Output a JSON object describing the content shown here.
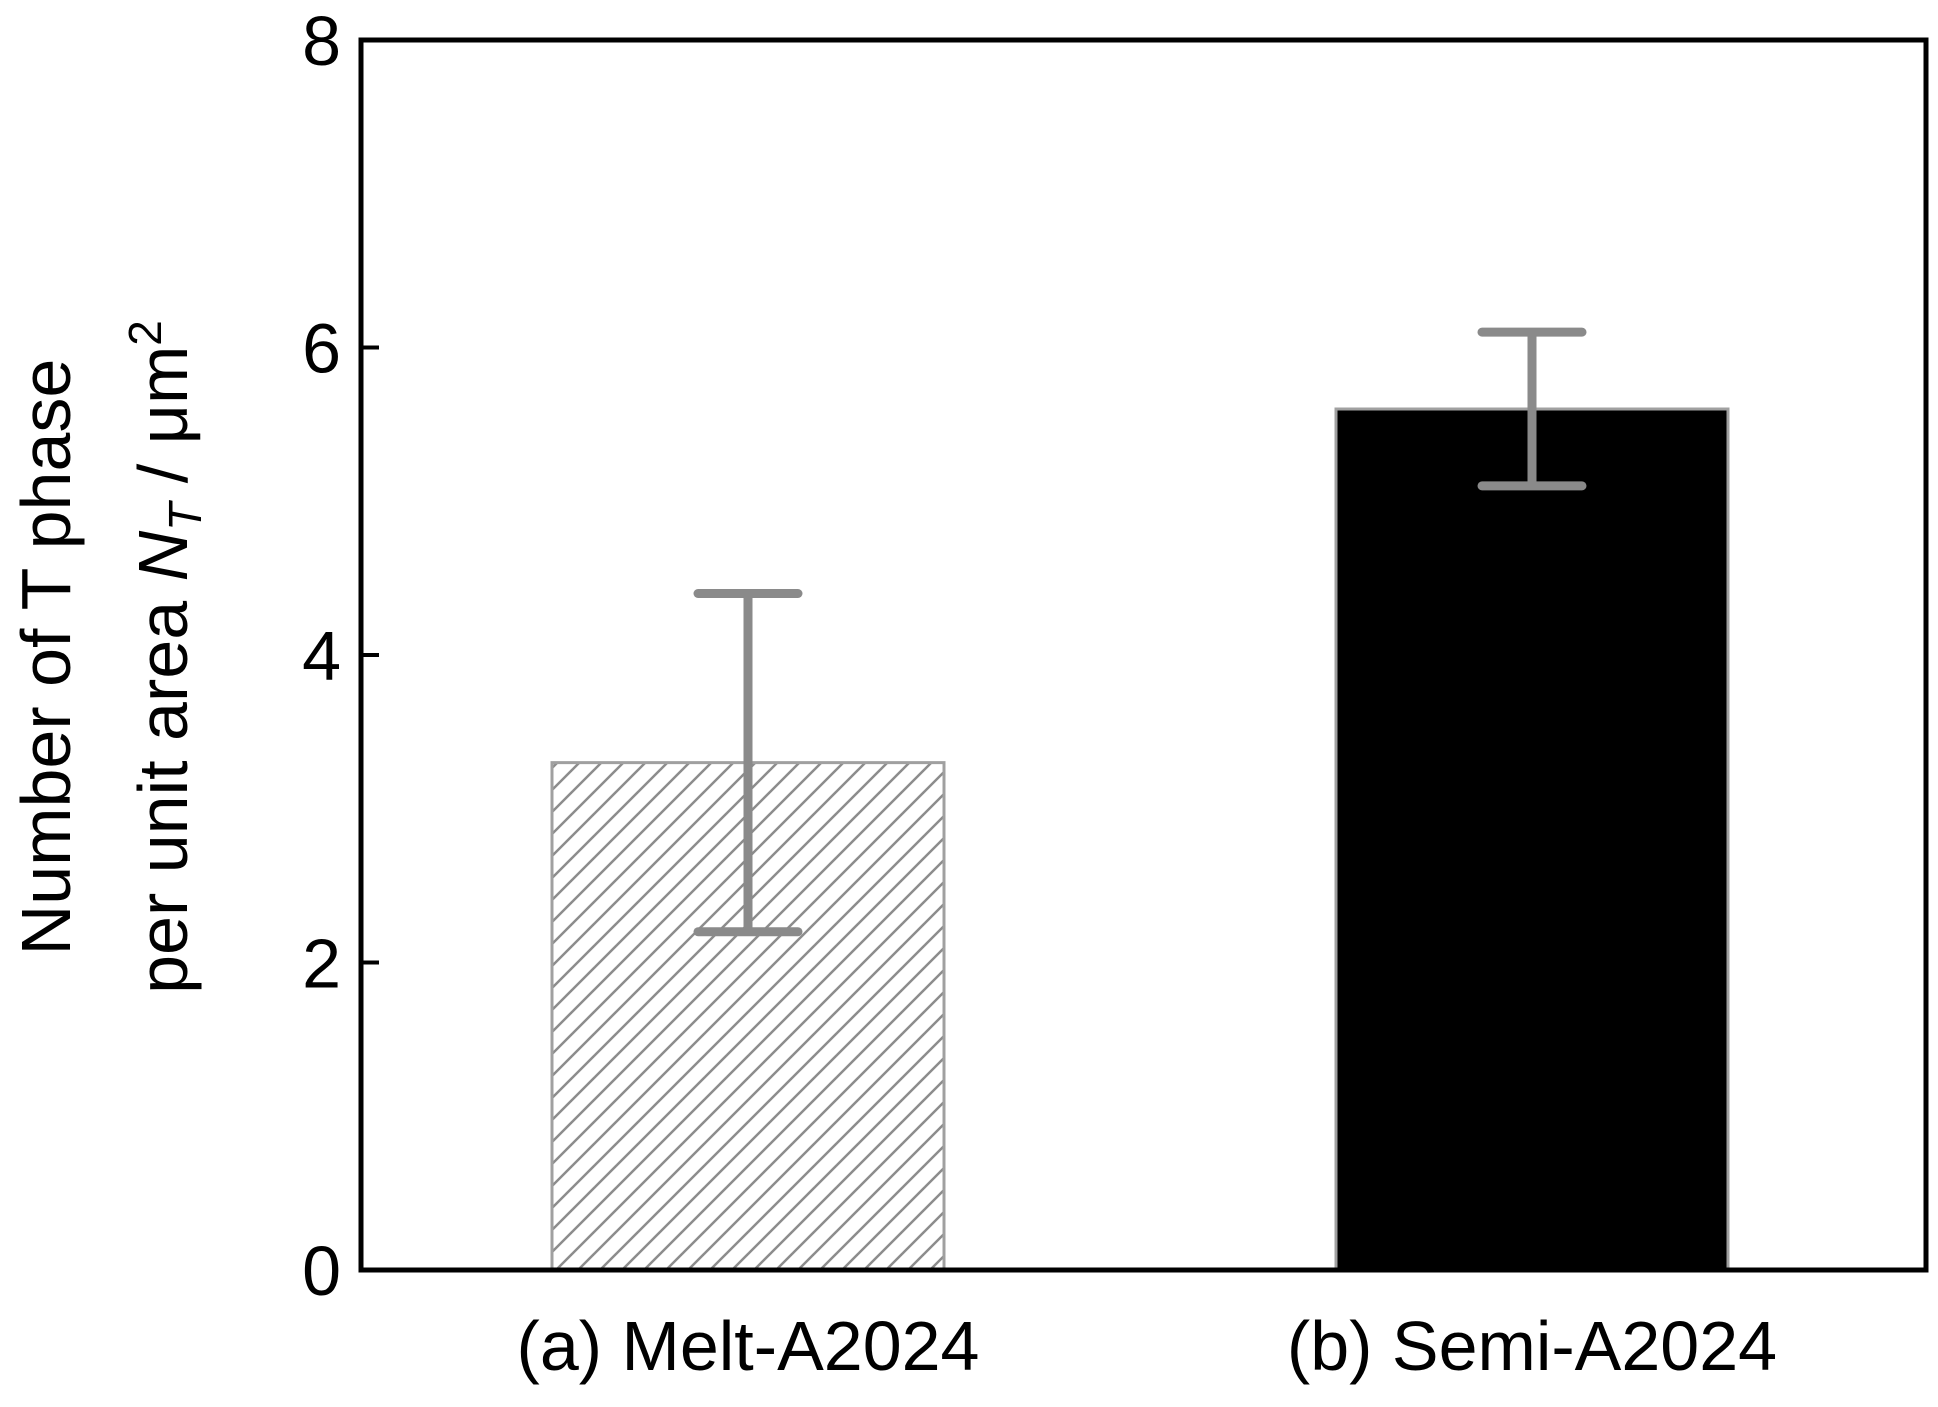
{
  "chart_data": {
    "type": "bar",
    "categories": [
      "(a) Melt-A2024",
      "(b) Semi-A2024"
    ],
    "values": [
      3.3,
      5.6
    ],
    "error_high": [
      4.4,
      6.1
    ],
    "error_low": [
      2.2,
      5.1
    ],
    "title": "",
    "xlabel": "",
    "ylabel": {
      "line1": "Number of T phase",
      "line2_prefix": "per unit area ",
      "symbol": "N",
      "subscript": "T",
      "unit_prefix": " / μm",
      "unit_superscript": "2"
    },
    "ylim": [
      0,
      8
    ],
    "yticks": [
      "0",
      "2",
      "4",
      "6",
      "8"
    ],
    "ytick_values": [
      0,
      2,
      4,
      6,
      8
    ],
    "grid": false,
    "legend": "none",
    "bar_styles": [
      "hatched",
      "solid"
    ],
    "colors": {
      "bar_solid": "#000000",
      "bar_hatch_stroke": "#8c8c8c",
      "bar_outline": "#a0a0a0",
      "error_bar": "#8a8a8a",
      "axis": "#000000"
    }
  }
}
